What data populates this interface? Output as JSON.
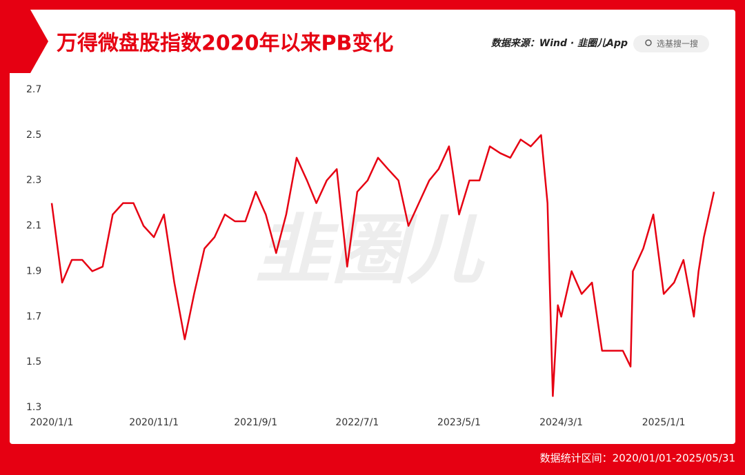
{
  "chart_data": {
    "type": "line",
    "title": "万得微盘股指数2020年以来PB变化",
    "source": "数据来源：Wind · 韭圈儿App",
    "search": "选基搜一搜",
    "watermark": "韭圈儿",
    "footnote": "数据统计区间：2020/01/01-2025/05/31",
    "x": [
      "2020/1/1",
      "2020/2/1",
      "2020/3/1",
      "2020/4/1",
      "2020/5/1",
      "2020/6/1",
      "2020/7/1",
      "2020/8/1",
      "2020/9/1",
      "2020/10/1",
      "2020/11/1",
      "2020/12/1",
      "2021/1/1",
      "2021/2/1",
      "2021/3/1",
      "2021/4/1",
      "2021/5/1",
      "2021/6/1",
      "2021/7/1",
      "2021/8/1",
      "2021/9/1",
      "2021/10/1",
      "2021/11/1",
      "2021/12/1",
      "2022/1/1",
      "2022/2/1",
      "2022/3/1",
      "2022/4/1",
      "2022/5/1",
      "2022/6/1",
      "2022/7/1",
      "2022/8/1",
      "2022/9/1",
      "2022/10/1",
      "2022/11/1",
      "2022/12/1",
      "2023/1/1",
      "2023/2/1",
      "2023/3/1",
      "2023/4/1",
      "2023/5/1",
      "2023/6/1",
      "2023/7/1",
      "2023/8/1",
      "2023/9/1",
      "2023/10/1",
      "2023/11/1",
      "2023/12/1",
      "2024/1/1",
      "2024/1/20",
      "2024/2/5",
      "2024/2/20",
      "2024/3/1",
      "2024/4/1",
      "2024/5/1",
      "2024/6/1",
      "2024/7/1",
      "2024/8/1",
      "2024/9/1",
      "2024/9/24",
      "2024/10/1",
      "2024/11/1",
      "2024/12/1",
      "2025/1/1",
      "2025/2/1",
      "2025/3/1",
      "2025/4/1",
      "2025/4/15",
      "2025/5/1",
      "2025/5/31"
    ],
    "series": [
      {
        "name": "PB",
        "color": "#e60012",
        "values": [
          2.2,
          1.85,
          1.95,
          1.95,
          1.9,
          1.92,
          2.15,
          2.2,
          2.2,
          2.1,
          2.05,
          2.15,
          1.85,
          1.6,
          1.8,
          2.0,
          2.05,
          2.15,
          2.12,
          2.12,
          2.25,
          2.15,
          1.98,
          2.15,
          2.4,
          2.3,
          2.2,
          2.3,
          2.35,
          1.92,
          2.25,
          2.3,
          2.4,
          2.35,
          2.3,
          2.1,
          2.2,
          2.3,
          2.35,
          2.45,
          2.15,
          2.3,
          2.3,
          2.45,
          2.42,
          2.4,
          2.48,
          2.45,
          2.5,
          2.2,
          1.35,
          1.75,
          1.7,
          1.9,
          1.8,
          1.85,
          1.55,
          1.55,
          1.55,
          1.48,
          1.9,
          2.0,
          2.15,
          1.8,
          1.85,
          1.95,
          1.7,
          1.9,
          2.05,
          2.25
        ]
      }
    ],
    "xlim": [
      "2020/1/1",
      "2025/5/31"
    ],
    "xticks": [
      "2020/1/1",
      "2020/11/1",
      "2021/9/1",
      "2022/7/1",
      "2023/5/1",
      "2024/3/1",
      "2025/1/1"
    ],
    "ylim": [
      1.3,
      2.7
    ],
    "yticks": [
      2.7,
      2.5,
      2.3,
      2.1,
      1.9,
      1.7,
      1.5,
      1.3
    ]
  }
}
